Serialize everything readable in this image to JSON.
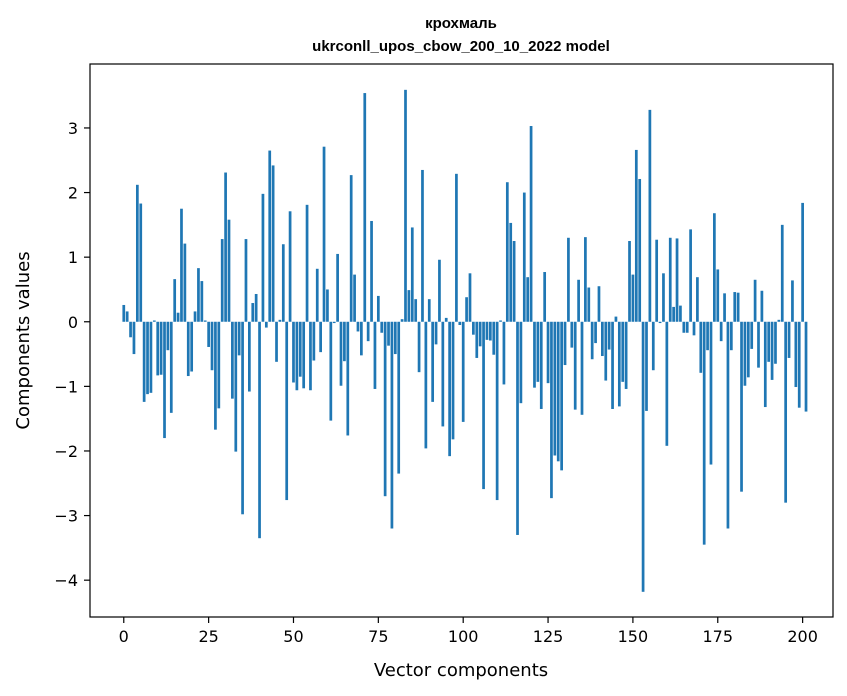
{
  "chart_data": {
    "type": "bar",
    "title": "крохмаль",
    "subtitle": "ukrconll_upos_cbow_200_10_2022 model",
    "xlabel": "Vector components",
    "ylabel": "Components values",
    "xlim": [
      -9.95,
      208.95
    ],
    "ylim": [
      -4.57,
      3.99
    ],
    "xticks": [
      0,
      25,
      50,
      75,
      100,
      125,
      150,
      175,
      200
    ],
    "yticks": [
      -4,
      -3,
      -2,
      -1,
      0,
      1,
      2,
      3
    ],
    "bar_color": "#1f77b4",
    "values": [
      0.26,
      0.16,
      -0.24,
      -0.5,
      2.12,
      1.83,
      -1.24,
      -1.12,
      -1.1,
      0.02,
      -0.83,
      -0.82,
      -1.8,
      -0.44,
      -1.41,
      0.66,
      0.14,
      1.75,
      1.21,
      -0.84,
      -0.77,
      0.16,
      0.83,
      0.63,
      0.02,
      -0.39,
      -0.75,
      -1.67,
      -1.34,
      1.28,
      2.31,
      1.58,
      -1.19,
      -2.01,
      -0.52,
      -2.98,
      1.28,
      -1.08,
      0.29,
      0.43,
      -3.35,
      1.98,
      -0.09,
      2.65,
      2.42,
      -0.62,
      0.03,
      1.2,
      -2.76,
      1.71,
      -0.94,
      -1.06,
      -0.85,
      -1.03,
      1.81,
      -1.06,
      -0.6,
      0.82,
      -0.47,
      2.71,
      0.5,
      -1.53,
      -0.02,
      1.05,
      -0.99,
      -0.61,
      -1.76,
      2.27,
      0.73,
      -0.15,
      -0.52,
      3.54,
      -0.3,
      1.56,
      -1.04,
      0.4,
      -0.17,
      -2.7,
      -0.37,
      -3.2,
      -0.5,
      -2.35,
      0.04,
      3.59,
      0.49,
      1.46,
      0.35,
      -0.78,
      2.35,
      -1.96,
      0.35,
      -1.24,
      -0.35,
      0.96,
      -1.62,
      0.06,
      -2.08,
      -1.82,
      2.29,
      -0.05,
      -1.55,
      0.38,
      0.75,
      -0.2,
      -0.56,
      -0.38,
      -2.59,
      -0.28,
      -0.29,
      -0.51,
      -2.76,
      0.02,
      -0.97,
      2.16,
      1.53,
      1.25,
      -3.3,
      -1.26,
      2.0,
      0.69,
      3.03,
      -1.02,
      -0.93,
      -1.35,
      0.77,
      -0.95,
      -2.73,
      -2.07,
      -2.16,
      -2.3,
      -0.67,
      1.3,
      -0.4,
      -1.36,
      0.65,
      -1.44,
      1.31,
      0.53,
      -0.58,
      -0.33,
      0.55,
      -0.53,
      -0.91,
      -0.43,
      -1.35,
      0.08,
      -1.31,
      -0.93,
      -1.04,
      1.25,
      0.73,
      2.66,
      2.21,
      -4.18,
      -1.38,
      3.28,
      -0.75,
      1.27,
      -0.02,
      0.75,
      -1.92,
      1.3,
      0.23,
      1.29,
      0.25,
      -0.17,
      -0.17,
      1.43,
      -0.21,
      0.69,
      -0.79,
      -3.45,
      -0.44,
      -2.21,
      1.68,
      0.81,
      -0.3,
      0.44,
      -3.2,
      -0.44,
      0.46,
      0.45,
      -2.63,
      -0.99,
      -0.86,
      -0.42,
      0.65,
      -0.71,
      0.48,
      -1.32,
      -0.62,
      -0.9,
      -0.65,
      0.03,
      1.5,
      -2.8,
      -0.56,
      0.64,
      -1.01,
      -1.33,
      1.84,
      -1.39
    ]
  }
}
